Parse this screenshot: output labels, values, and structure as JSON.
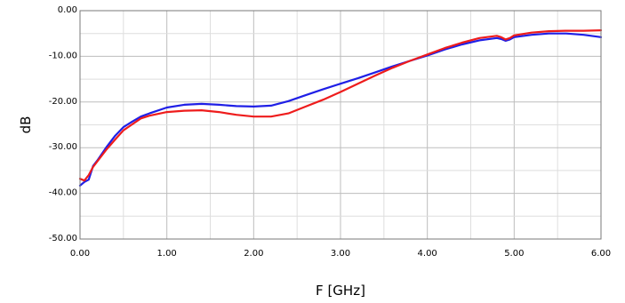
{
  "chart_data": {
    "type": "line",
    "title": "",
    "xlabel": "F [GHz]",
    "ylabel": "dB",
    "xlim": [
      0,
      6
    ],
    "ylim": [
      -50,
      0
    ],
    "xticks": [
      "0.00",
      "1.00",
      "2.00",
      "3.00",
      "4.00",
      "5.00",
      "6.00"
    ],
    "yticks": [
      "0.00",
      "-10.00",
      "-20.00",
      "-30.00",
      "-40.00",
      "-50.00"
    ],
    "grid": true,
    "legend": "none",
    "series": [
      {
        "color": "#1f1fe6",
        "x": [
          0,
          0.05,
          0.1,
          0.15,
          0.2,
          0.3,
          0.4,
          0.5,
          0.6,
          0.7,
          0.8,
          1.0,
          1.2,
          1.4,
          1.6,
          1.8,
          2.0,
          2.2,
          2.4,
          2.6,
          2.8,
          3.0,
          3.2,
          3.4,
          3.6,
          3.8,
          4.0,
          4.2,
          4.4,
          4.6,
          4.8,
          4.85,
          4.9,
          4.95,
          5.0,
          5.2,
          5.4,
          5.6,
          5.8,
          6.0
        ],
        "y": [
          -38.3,
          -37.5,
          -37.0,
          -34.0,
          -32.8,
          -30.0,
          -27.5,
          -25.5,
          -24.3,
          -23.2,
          -22.5,
          -21.2,
          -20.6,
          -20.4,
          -20.6,
          -20.9,
          -21.0,
          -20.8,
          -19.8,
          -18.5,
          -17.2,
          -16.0,
          -14.8,
          -13.5,
          -12.2,
          -11.0,
          -9.8,
          -8.5,
          -7.4,
          -6.5,
          -6.0,
          -6.2,
          -6.6,
          -6.3,
          -5.8,
          -5.3,
          -5.0,
          -5.0,
          -5.3,
          -5.8
        ]
      },
      {
        "color": "#ee1c1c",
        "x": [
          0,
          0.05,
          0.1,
          0.15,
          0.2,
          0.3,
          0.4,
          0.5,
          0.6,
          0.7,
          0.8,
          1.0,
          1.2,
          1.4,
          1.6,
          1.8,
          2.0,
          2.2,
          2.4,
          2.6,
          2.8,
          3.0,
          3.2,
          3.4,
          3.6,
          3.8,
          4.0,
          4.2,
          4.4,
          4.6,
          4.8,
          4.85,
          4.9,
          4.95,
          5.0,
          5.2,
          5.4,
          5.6,
          5.8,
          6.0
        ],
        "y": [
          -36.8,
          -37.2,
          -36.0,
          -34.2,
          -33.0,
          -30.5,
          -28.3,
          -26.2,
          -24.9,
          -23.6,
          -23.0,
          -22.2,
          -21.9,
          -21.8,
          -22.2,
          -22.8,
          -23.2,
          -23.2,
          -22.5,
          -21.0,
          -19.5,
          -17.8,
          -16.0,
          -14.2,
          -12.5,
          -11.0,
          -9.6,
          -8.2,
          -7.0,
          -6.0,
          -5.5,
          -5.8,
          -6.3,
          -6.0,
          -5.4,
          -4.8,
          -4.5,
          -4.4,
          -4.4,
          -4.3
        ]
      }
    ]
  }
}
